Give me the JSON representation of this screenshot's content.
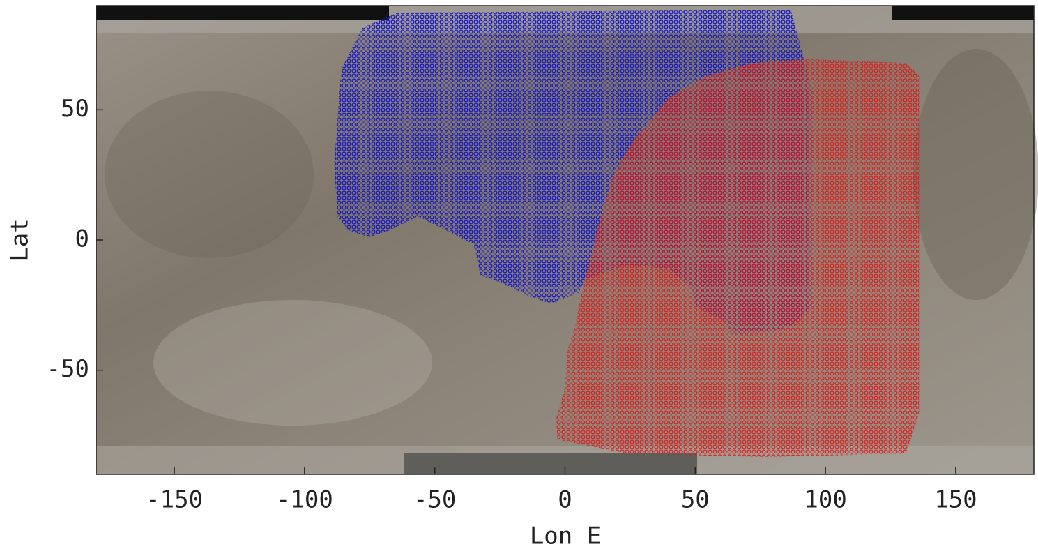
{
  "chart_data": {
    "type": "region",
    "x_label": "Lon E",
    "y_label": "Lat",
    "xlim": [
      -180,
      180
    ],
    "ylim": [
      -90,
      90
    ],
    "xticks": [
      -150,
      -100,
      -50,
      0,
      50,
      100,
      150
    ],
    "yticks": [
      -50,
      0,
      50
    ],
    "series": [
      {
        "color": "#1414c8",
        "x": [
          -64.5,
          86.7,
          90.7,
          94.8,
          94.8,
          88.1,
          80.0,
          64.0,
          61.3,
          50.6,
          47.9,
          39.9,
          23.8,
          7.8,
          5.1,
          -5.6,
          -13.7,
          -24.4,
          -32.4,
          -35.1,
          -45.8,
          -56.5,
          -67.2,
          -75.2,
          -83.2,
          -87.3,
          -88.6,
          -85.9,
          -77.9
        ],
        "y": [
          87.3,
          88.4,
          73.4,
          57.3,
          -25.7,
          -32.4,
          -35.1,
          -36.4,
          -31.1,
          -25.7,
          -17.7,
          -11.0,
          -9.6,
          -15.0,
          -20.4,
          -24.4,
          -21.7,
          -16.3,
          -13.7,
          -1.6,
          3.8,
          9.1,
          3.8,
          1.1,
          3.8,
          9.1,
          29.2,
          65.4,
          81.4
        ]
      },
      {
        "color": "#e01414",
        "x": [
          93.4,
          130.9,
          136.2,
          136.2,
          130.9,
          77.4,
          23.8,
          10.4,
          -2.9,
          -3.5,
          -0.3,
          1.1,
          3.7,
          6.4,
          9.1,
          13.1,
          18.5,
          26.5,
          39.9,
          53.3,
          72.0
        ],
        "y": [
          69.4,
          68.0,
          62.7,
          -65.9,
          -82.0,
          -83.3,
          -82.0,
          -79.3,
          -76.6,
          -68.6,
          -57.9,
          -41.8,
          -33.8,
          -20.4,
          -9.6,
          6.4,
          25.2,
          38.6,
          54.6,
          62.7,
          68.0
        ]
      }
    ]
  }
}
